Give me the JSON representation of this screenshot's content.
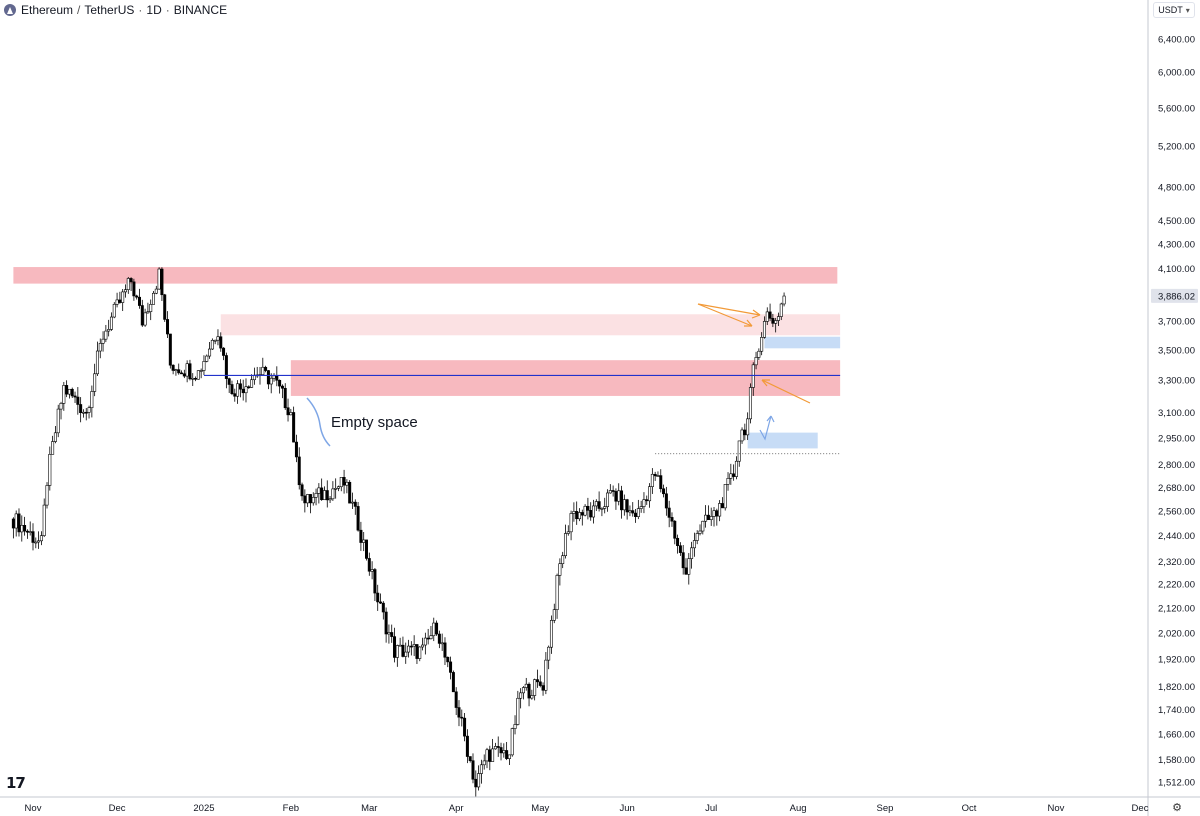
{
  "header": {
    "symbol": "Ethereum",
    "quote": "TetherUS",
    "interval": "1D",
    "exchange": "BINANCE",
    "currency_label": "USDT"
  },
  "icons": [
    "ethereum-logo-icon",
    "chevron-down-icon",
    "gear-icon",
    "tradingview-logo-icon"
  ],
  "colors": {
    "candle_fill": "#000000",
    "axis_text": "#131722",
    "grid": "#ffffff",
    "resistance_zone": "#f7b9bf",
    "resistance_zone_light": "#fbe1e3",
    "support_zone": "#c7dcf6",
    "level_line": "#2233cc",
    "arrow_orange": "#f29a38",
    "arrow_blue": "#7ea6e6",
    "current_price_label_bg": "#e0e3eb"
  },
  "annotations": {
    "note_text": "Empty space",
    "tv_logo_text": "17"
  },
  "chart_data": {
    "type": "candlestick",
    "title": "Ethereum / TetherUS · 1D · BINANCE",
    "y_scale": "log",
    "ylim": [
      1460,
      6800
    ],
    "x_labels": [
      "Nov",
      "Dec",
      "2025",
      "Feb",
      "Mar",
      "Apr",
      "May",
      "Jun",
      "Jul",
      "Aug",
      "Sep",
      "Oct",
      "Nov",
      "Dec"
    ],
    "y_ticks": [
      "6,400.00",
      "6,000.00",
      "5,600.00",
      "5,200.00",
      "4,800.00",
      "4,500.00",
      "4,300.00",
      "4,100.00",
      "3,700.00",
      "3,500.00",
      "3,300.00",
      "3,100.00",
      "2,950.00",
      "2,800.00",
      "2,680.00",
      "2,560.00",
      "2,440.00",
      "2,320.00",
      "2,220.00",
      "2,120.00",
      "2,020.00",
      "1,920.00",
      "1,820.00",
      "1,740.00",
      "1,660.00",
      "1,580.00",
      "1,512.00"
    ],
    "current_price": "3,886.02",
    "close_path": [
      [
        "2024-10-25",
        2520
      ],
      [
        "2024-11-04",
        2400
      ],
      [
        "2024-11-06",
        2720
      ],
      [
        "2024-11-12",
        3250
      ],
      [
        "2024-11-20",
        3100
      ],
      [
        "2024-11-26",
        3600
      ],
      [
        "2024-12-06",
        4000
      ],
      [
        "2024-12-10",
        3700
      ],
      [
        "2024-12-16",
        4050
      ],
      [
        "2024-12-20",
        3400
      ],
      [
        "2024-12-30",
        3350
      ],
      [
        "2025-01-06",
        3650
      ],
      [
        "2025-01-10",
        3250
      ],
      [
        "2025-01-14",
        3250
      ],
      [
        "2025-01-20",
        3350
      ],
      [
        "2025-01-26",
        3300
      ],
      [
        "2025-02-01",
        3100
      ],
      [
        "2025-02-03",
        2800
      ],
      [
        "2025-02-06",
        2600
      ],
      [
        "2025-02-20",
        2700
      ],
      [
        "2025-02-25",
        2500
      ],
      [
        "2025-03-04",
        2150
      ],
      [
        "2025-03-10",
        1950
      ],
      [
        "2025-03-20",
        1950
      ],
      [
        "2025-03-25",
        2050
      ],
      [
        "2025-03-31",
        1800
      ],
      [
        "2025-04-08",
        1500
      ],
      [
        "2025-04-12",
        1600
      ],
      [
        "2025-04-20",
        1600
      ],
      [
        "2025-04-24",
        1800
      ],
      [
        "2025-05-02",
        1830
      ],
      [
        "2025-05-08",
        2300
      ],
      [
        "2025-05-12",
        2550
      ],
      [
        "2025-05-20",
        2550
      ],
      [
        "2025-05-27",
        2650
      ],
      [
        "2025-06-02",
        2550
      ],
      [
        "2025-06-05",
        2550
      ],
      [
        "2025-06-11",
        2750
      ],
      [
        "2025-06-17",
        2500
      ],
      [
        "2025-06-22",
        2250
      ],
      [
        "2025-06-25",
        2450
      ],
      [
        "2025-07-03",
        2550
      ],
      [
        "2025-07-09",
        2750
      ],
      [
        "2025-07-11",
        2950
      ],
      [
        "2025-07-14",
        3050
      ],
      [
        "2025-07-16",
        3350
      ],
      [
        "2025-07-18",
        3550
      ],
      [
        "2025-07-21",
        3750
      ],
      [
        "2025-07-24",
        3700
      ],
      [
        "2025-07-27",
        3886
      ]
    ],
    "zones": [
      {
        "type": "resistance",
        "y_low": 3980,
        "y_high": 4110,
        "x_start": "2024-10-25",
        "x_end": "2025-08-15"
      },
      {
        "type": "resistance-light",
        "y_low": 3600,
        "y_high": 3750,
        "x_start": "2025-01-07",
        "x_end": "2025-08-16"
      },
      {
        "type": "resistance",
        "y_low": 3200,
        "y_high": 3430,
        "x_start": "2025-02-01",
        "x_end": "2025-08-16"
      },
      {
        "type": "support",
        "y_low": 3510,
        "y_high": 3590,
        "x_start": "2025-07-20",
        "x_end": "2025-08-16"
      },
      {
        "type": "support",
        "y_low": 2890,
        "y_high": 2980,
        "x_start": "2025-07-14",
        "x_end": "2025-08-08"
      }
    ],
    "level_line": 3330,
    "dotted_level": 2860
  }
}
